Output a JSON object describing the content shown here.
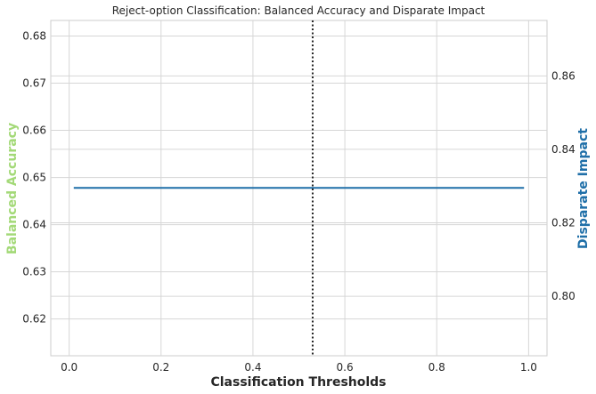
{
  "chart_data": {
    "type": "line",
    "title": "Reject-option Classification: Balanced Accuracy and Disparate Impact",
    "xlabel": "Classification Thresholds",
    "ylabel_left": "Balanced Accuracy",
    "ylabel_right": "Disparate Impact",
    "xlim": [
      -0.04,
      1.04
    ],
    "ylim_left": [
      0.6122,
      0.6833
    ],
    "ylim_right": [
      0.7838,
      0.8751
    ],
    "x_ticks": [
      "0.0",
      "0.2",
      "0.4",
      "0.6",
      "0.8",
      "1.0"
    ],
    "y_left_ticks": [
      "0.62",
      "0.63",
      "0.64",
      "0.65",
      "0.66",
      "0.67",
      "0.68"
    ],
    "y_right_ticks": [
      "0.80",
      "0.82",
      "0.84",
      "0.86"
    ],
    "grid": true,
    "series": [
      {
        "axis": "right",
        "color": "#1f6fa8",
        "x": [
          0.01,
          0.99
        ],
        "y": [
          0.8295,
          0.8295
        ]
      }
    ],
    "vline": {
      "x": 0.53,
      "style": "dotted",
      "color": "#262626"
    },
    "colors": {
      "left_label": "#a3d977",
      "right_label": "#1f6fa8"
    }
  }
}
